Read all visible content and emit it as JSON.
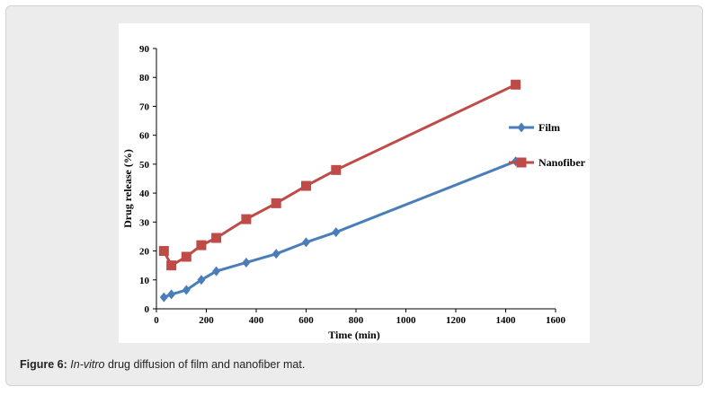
{
  "chart_data": {
    "type": "line",
    "title": "",
    "xlabel": "Time (min)",
    "ylabel": "Drug release (%)",
    "xlim": [
      0,
      1600
    ],
    "ylim": [
      0,
      90
    ],
    "xticks": [
      0,
      200,
      400,
      600,
      800,
      1000,
      1200,
      1400,
      1600
    ],
    "yticks": [
      0,
      10,
      20,
      30,
      40,
      50,
      60,
      70,
      80,
      90
    ],
    "grid": false,
    "legend_position": "right",
    "series": [
      {
        "name": "Film",
        "color": "#4a7ebb",
        "marker": "diamond",
        "x": [
          30,
          60,
          120,
          180,
          240,
          360,
          480,
          600,
          720,
          1440
        ],
        "y": [
          4,
          5,
          6.5,
          10,
          13,
          16,
          19,
          23,
          26.5,
          51
        ]
      },
      {
        "name": "Nanofiber",
        "color": "#be4b48",
        "marker": "square",
        "x": [
          30,
          60,
          120,
          180,
          240,
          360,
          480,
          600,
          720,
          1440
        ],
        "y": [
          20,
          15,
          18,
          22,
          24.5,
          31,
          36.5,
          42.5,
          48,
          77.5
        ]
      }
    ]
  },
  "caption": {
    "label": "Figure 6:",
    "italic": "In-vitro",
    "rest": " drug diffusion of film and nanofiber mat."
  }
}
